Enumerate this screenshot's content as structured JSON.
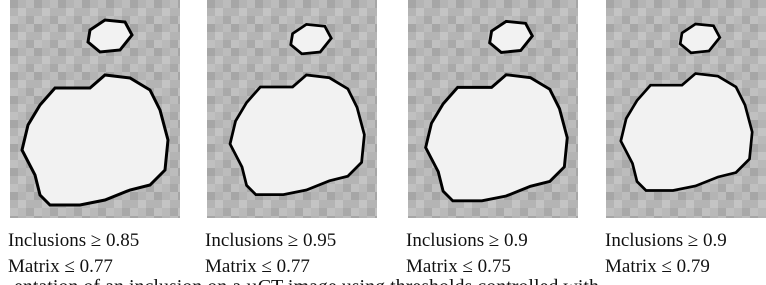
{
  "panels": [
    {
      "inclusions": "Inclusions ≥ 0.85",
      "matrix": "Matrix ≤ 0.77"
    },
    {
      "inclusions": "Inclusions ≥ 0.95",
      "matrix": "Matrix ≤ 0.77"
    },
    {
      "inclusions": "Inclusions ≥ 0.9",
      "matrix": "Matrix ≤ 0.75"
    },
    {
      "inclusions": "Inclusions ≥ 0.9",
      "matrix": "Matrix ≤ 0.79"
    }
  ],
  "figure_caption": "entation of an inclusion on a µCT image using thresholds controlled with"
}
